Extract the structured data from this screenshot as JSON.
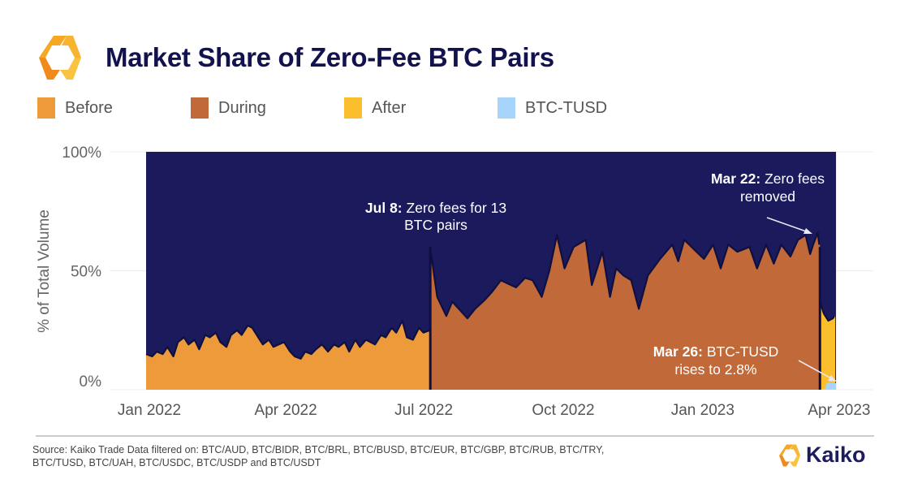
{
  "header": {
    "title": "Market Share of Zero-Fee BTC Pairs"
  },
  "legend": [
    {
      "label": "Before",
      "color": "#ec9a3a"
    },
    {
      "label": "During",
      "color": "#c2693a"
    },
    {
      "label": "After",
      "color": "#fbbf2d"
    },
    {
      "label": "BTC-TUSD",
      "color": "#a6d4fa"
    }
  ],
  "colors": {
    "background_other": "#1b1a5c",
    "outline": "#0f0f40",
    "title": "#12124f",
    "brand_orange": "#f7931e"
  },
  "chart_data": {
    "type": "area",
    "title": "Market Share of Zero-Fee BTC Pairs",
    "xlabel": "",
    "ylabel": "% of Total Volume",
    "ylim": [
      0,
      100
    ],
    "xlim": [
      "2022-01-01",
      "2023-04-05"
    ],
    "grid": "horizontal",
    "legend_position": "top",
    "y_ticks": [
      "0%",
      "50%",
      "100%"
    ],
    "x_ticks": [
      {
        "date": "2022-01-01",
        "label": "Jan 2022"
      },
      {
        "date": "2022-04-01",
        "label": "Apr 2022"
      },
      {
        "date": "2022-07-01",
        "label": "Jul 2022"
      },
      {
        "date": "2022-10-01",
        "label": "Oct 2022"
      },
      {
        "date": "2023-01-01",
        "label": "Jan 2023"
      },
      {
        "date": "2023-04-01",
        "label": "Apr 2023"
      }
    ],
    "series": [
      {
        "name": "Before",
        "points": [
          [
            "2022-01-01",
            15
          ],
          [
            "2022-01-05",
            14
          ],
          [
            "2022-01-08",
            16
          ],
          [
            "2022-01-12",
            15
          ],
          [
            "2022-01-15",
            18
          ],
          [
            "2022-01-19",
            14
          ],
          [
            "2022-01-22",
            20
          ],
          [
            "2022-01-26",
            22
          ],
          [
            "2022-01-29",
            19
          ],
          [
            "2022-02-02",
            21
          ],
          [
            "2022-02-05",
            17
          ],
          [
            "2022-02-09",
            23
          ],
          [
            "2022-02-12",
            22
          ],
          [
            "2022-02-16",
            24
          ],
          [
            "2022-02-19",
            20
          ],
          [
            "2022-02-23",
            18
          ],
          [
            "2022-02-26",
            23
          ],
          [
            "2022-03-02",
            25
          ],
          [
            "2022-03-05",
            23
          ],
          [
            "2022-03-09",
            27
          ],
          [
            "2022-03-12",
            26
          ],
          [
            "2022-03-16",
            22
          ],
          [
            "2022-03-19",
            19
          ],
          [
            "2022-03-23",
            21
          ],
          [
            "2022-03-26",
            18
          ],
          [
            "2022-04-02",
            20
          ],
          [
            "2022-04-06",
            16
          ],
          [
            "2022-04-09",
            14
          ],
          [
            "2022-04-13",
            13
          ],
          [
            "2022-04-16",
            16
          ],
          [
            "2022-04-20",
            15
          ],
          [
            "2022-04-23",
            17
          ],
          [
            "2022-04-27",
            19
          ],
          [
            "2022-05-01",
            16
          ],
          [
            "2022-05-05",
            19
          ],
          [
            "2022-05-08",
            18
          ],
          [
            "2022-05-12",
            20
          ],
          [
            "2022-05-15",
            16
          ],
          [
            "2022-05-19",
            21
          ],
          [
            "2022-05-22",
            18
          ],
          [
            "2022-05-26",
            21
          ],
          [
            "2022-06-01",
            19
          ],
          [
            "2022-06-05",
            23
          ],
          [
            "2022-06-08",
            22
          ],
          [
            "2022-06-12",
            26
          ],
          [
            "2022-06-15",
            24
          ],
          [
            "2022-06-19",
            29
          ],
          [
            "2022-06-22",
            22
          ],
          [
            "2022-06-26",
            21
          ],
          [
            "2022-06-30",
            26
          ],
          [
            "2022-07-03",
            24
          ],
          [
            "2022-07-07",
            25
          ]
        ]
      },
      {
        "name": "During",
        "points": [
          [
            "2022-07-08",
            57
          ],
          [
            "2022-07-12",
            39
          ],
          [
            "2022-07-18",
            31
          ],
          [
            "2022-07-22",
            37
          ],
          [
            "2022-08-01",
            30
          ],
          [
            "2022-08-06",
            34
          ],
          [
            "2022-08-12",
            37.5
          ],
          [
            "2022-08-17",
            41
          ],
          [
            "2022-08-23",
            46
          ],
          [
            "2022-09-02",
            43
          ],
          [
            "2022-09-08",
            47
          ],
          [
            "2022-09-13",
            46
          ],
          [
            "2022-09-19",
            39
          ],
          [
            "2022-09-24",
            50
          ],
          [
            "2022-09-29",
            65
          ],
          [
            "2022-10-04",
            51
          ],
          [
            "2022-10-10",
            60
          ],
          [
            "2022-10-18",
            63
          ],
          [
            "2022-10-22",
            44
          ],
          [
            "2022-10-29",
            58
          ],
          [
            "2022-11-03",
            39
          ],
          [
            "2022-11-07",
            51
          ],
          [
            "2022-11-12",
            48
          ],
          [
            "2022-11-17",
            46
          ],
          [
            "2022-11-22",
            34
          ],
          [
            "2022-11-28",
            48
          ],
          [
            "2022-12-06",
            55
          ],
          [
            "2022-12-14",
            61
          ],
          [
            "2022-12-18",
            54
          ],
          [
            "2022-12-22",
            63
          ],
          [
            "2022-12-30",
            58
          ],
          [
            "2023-01-04",
            55
          ],
          [
            "2023-01-10",
            61
          ],
          [
            "2023-01-15",
            51
          ],
          [
            "2023-01-20",
            61
          ],
          [
            "2023-01-26",
            58
          ],
          [
            "2023-02-03",
            60
          ],
          [
            "2023-02-08",
            51
          ],
          [
            "2023-02-14",
            61
          ],
          [
            "2023-02-19",
            53
          ],
          [
            "2023-02-24",
            61
          ],
          [
            "2023-03-02",
            56
          ],
          [
            "2023-03-07",
            63
          ],
          [
            "2023-03-12",
            65
          ],
          [
            "2023-03-15",
            57
          ],
          [
            "2023-03-17",
            61
          ],
          [
            "2023-03-20",
            66
          ],
          [
            "2023-03-21",
            61
          ]
        ]
      },
      {
        "name": "After",
        "points": [
          [
            "2023-03-22",
            36
          ],
          [
            "2023-03-24",
            32
          ],
          [
            "2023-03-27",
            29
          ],
          [
            "2023-03-30",
            30
          ],
          [
            "2023-03-31",
            31
          ]
        ]
      },
      {
        "name": "BTC-TUSD",
        "points": [
          [
            "2023-03-22",
            0
          ],
          [
            "2023-03-25",
            0.5
          ],
          [
            "2023-03-26",
            2.8
          ],
          [
            "2023-03-31",
            2.8
          ]
        ]
      }
    ],
    "annotations": [
      {
        "bold": "Jul 8:",
        "text": "Zero fees for 13",
        "line2": "BTC pairs",
        "date": "2022-07-08"
      },
      {
        "bold": "Mar 22:",
        "text": "Zero fees",
        "line2": "removed",
        "date": "2023-03-22"
      },
      {
        "bold": "Mar 26:",
        "text": "BTC-TUSD",
        "line2": "rises to 2.8%",
        "date": "2023-03-26"
      }
    ]
  },
  "footer": {
    "source_line1": "Source: Kaiko Trade Data filtered on: BTC/AUD, BTC/BIDR, BTC/BRL, BTC/BUSD, BTC/EUR, BTC/GBP, BTC/RUB, BTC/TRY,",
    "source_line2": "BTC/TUSD, BTC/UAH, BTC/USDC, BTC/USDP and BTC/USDT",
    "brand": "Kaiko"
  }
}
